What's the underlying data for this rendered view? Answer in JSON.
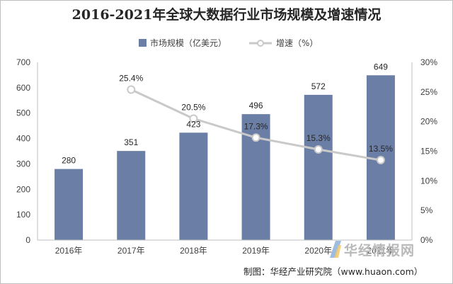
{
  "chart_data": {
    "type": "bar+line",
    "title": "2016-2021年全球大数据行业市场规模及增速情况",
    "categories": [
      "2016年",
      "2017年",
      "2018年",
      "2019年",
      "2020年",
      "2021年"
    ],
    "series": [
      {
        "name": "市场规模（亿美元）",
        "type": "bar",
        "axis": "left",
        "values": [
          280,
          351,
          423,
          496,
          572,
          649
        ],
        "labels": [
          "280",
          "351",
          "423",
          "496",
          "572",
          "649"
        ],
        "color": "#6b7ea6"
      },
      {
        "name": "增速（%）",
        "type": "line",
        "axis": "right",
        "values": [
          null,
          25.4,
          20.5,
          17.3,
          15.3,
          13.5
        ],
        "labels": [
          "",
          "25.4%",
          "20.5%",
          "17.3%",
          "15.3%",
          "13.5%"
        ],
        "color": "#c9c9c9"
      }
    ],
    "ylim_left": [
      0,
      700
    ],
    "yticks_left": [
      "0",
      "100",
      "200",
      "300",
      "400",
      "500",
      "600",
      "700"
    ],
    "ylim_right": [
      0,
      30
    ],
    "yticks_right": [
      "0%",
      "5%",
      "10%",
      "15%",
      "20%",
      "25%",
      "30%"
    ],
    "legend_position": "top-center",
    "grid": false
  },
  "source": "制图：华经产业研究院（www.huaon.com）",
  "watermark": "华经情报网",
  "watermark_sub": "huaon.com"
}
